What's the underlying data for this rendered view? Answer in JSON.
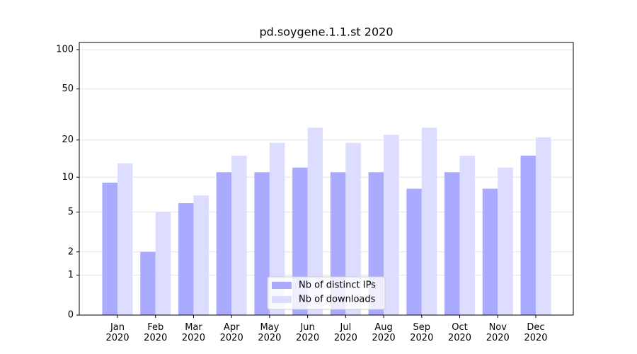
{
  "chart_data": {
    "type": "bar",
    "title": "pd.soygene.1.1.st 2020",
    "categories": [
      "Jan 2020",
      "Feb 2020",
      "Mar 2020",
      "Apr 2020",
      "May 2020",
      "Jun 2020",
      "Jul 2020",
      "Aug 2020",
      "Sep 2020",
      "Oct 2020",
      "Nov 2020",
      "Dec 2020"
    ],
    "series": [
      {
        "name": "Nb of distinct IPs",
        "color": "#aaaaff",
        "values": [
          9,
          2,
          6,
          11,
          11,
          12,
          11,
          11,
          8,
          11,
          8,
          15
        ]
      },
      {
        "name": "Nb of downloads",
        "color": "#ddddff",
        "values": [
          13,
          5,
          7,
          15,
          19,
          25,
          19,
          22,
          25,
          15,
          12,
          21
        ]
      }
    ],
    "yscale": "log1p",
    "ylim": [
      0,
      113.5
    ],
    "yticks": [
      0,
      1,
      2,
      5,
      10,
      20,
      50,
      100
    ],
    "grid": true,
    "legend": "lower center"
  }
}
